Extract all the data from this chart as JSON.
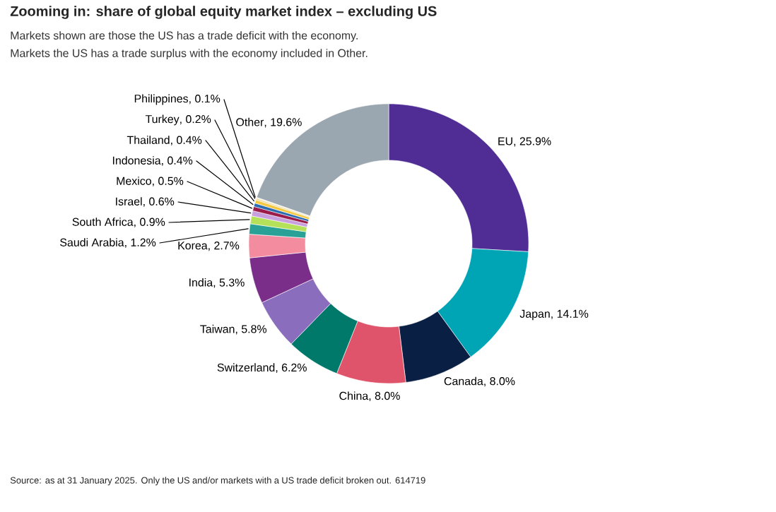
{
  "chart_data": {
    "type": "donut",
    "title": "Zooming in: share of global equity market index – excluding US",
    "subtitle": "Markets shown are those the US has a trade deficit with the economy.",
    "categories": [
      "EU",
      "Japan",
      "Canada",
      "China",
      "Switzerland",
      "Taiwan",
      "India",
      "Korea",
      "Saudi Arabia",
      "South Africa",
      "Israel",
      "Mexico",
      "Indonesia",
      "Thailand",
      "Turkey",
      "Philippines",
      "Other"
    ],
    "values": [
      25.9,
      14.1,
      8.0,
      8.0,
      6.2,
      5.8,
      5.3,
      2.7,
      1.2,
      0.9,
      0.6,
      0.5,
      0.4,
      0.4,
      0.2,
      0.1,
      19.6
    ],
    "value_labels": [
      ", 25.9%",
      ", 14.1%",
      ", 8.0%",
      ", 8.0%",
      ", 6.2%",
      ", 5.8%",
      ", 5.3%",
      ", 2.7%",
      ", 1.2%",
      ", 0.9%",
      ", 0.6%",
      ", 0.5%",
      ", 0.4%",
      ", 0.4%",
      ", 0.2%",
      ", 0.1%",
      ", 19.6%"
    ],
    "colors": [
      "#4f2d94",
      "#00a5b5",
      "#0a1f44",
      "#e0546b",
      "#00786a",
      "#8a6dbc",
      "#7a2e8a",
      "#f48ca0",
      "#2aa197",
      "#b5e05a",
      "#c8a0e0",
      "#9b1b4a",
      "#2b6cb0",
      "#f5c842",
      "#f2dca0",
      "#e8e0c8",
      "#9ba7b0"
    ],
    "annotations": [
      "Markets the US has a trade surplus with the economy included in Other.",
      "Source: as at 31 January 2025. Only the US and/or markets with a US trade deficit broken out.  614719"
    ]
  }
}
